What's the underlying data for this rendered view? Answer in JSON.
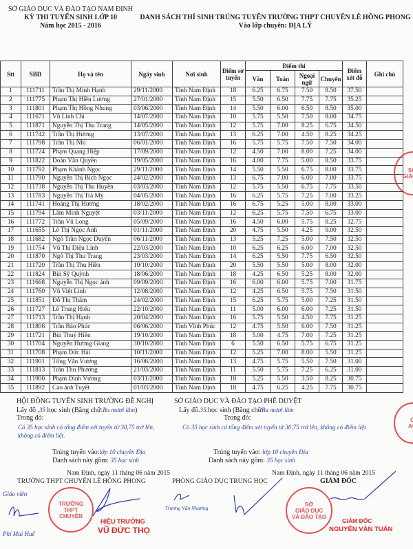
{
  "header_left": {
    "line1": "SỞ GIÁO DỤC VÀ ĐÀO TẠO NAM ĐỊNH",
    "line2": "KỲ THI TUYỂN SINH LỚP 10",
    "line3": "Năm học 2015 - 2016"
  },
  "header_right": {
    "title": "DANH SÁCH THÍ SINH TRÚNG TUYỂN TRƯỜNG THPT CHUYÊN LÊ HỒNG PHONG",
    "subtitle": "Vào lớp chuyên: ĐỊA LÝ"
  },
  "table": {
    "headers": {
      "stt": "Stt",
      "sbd": "SBD",
      "name": "Họ và tên",
      "dob": "Ngày sinh",
      "pob": "Nơi sinh",
      "prelim": "Điểm sơ tuyển",
      "exam_group": "Điểm thi",
      "van": "Văn",
      "toan": "Toán",
      "ngoaingu": "Ngoại ngữ",
      "chuyen": "Chuyên",
      "total": "Điểm xét đỗ",
      "note": "Ghi chú"
    },
    "rows": [
      [
        "1",
        "111711",
        "Trần Thị Minh Hạnh",
        "29/11/2000",
        "Tỉnh Nam Định",
        "18",
        "6.25",
        "6.75",
        "7.50",
        "8.50",
        "37.50"
      ],
      [
        "2",
        "111775",
        "Phạm Thị Hiền Lương",
        "27/01/2000",
        "Tỉnh Nam Định",
        "15",
        "5.50",
        "6.50",
        "7.75",
        "7.75",
        "35.25"
      ],
      [
        "3",
        "111801",
        "Phạm Thị Hồng Nhung",
        "03/06/2000",
        "Tỉnh Nam Định",
        "14",
        "5.50",
        "6.00",
        "6.50",
        "8.50",
        "35.00"
      ],
      [
        "4",
        "111671",
        "Vũ Linh Chi",
        "14/07/2000",
        "Tỉnh Nam Định",
        "10",
        "5.75",
        "5.50",
        "7.50",
        "8.00",
        "34.75"
      ],
      [
        "5",
        "111871",
        "Nguyễn Thị Thu Trang",
        "14/05/2000",
        "Tỉnh Nam Định",
        "12",
        "5.75",
        "7.00",
        "8.25",
        "6.75",
        "34.50"
      ],
      [
        "6",
        "111742",
        "Trần Thị Hương",
        "13/07/2000",
        "Tỉnh Nam Định",
        "13",
        "6.25",
        "7.00",
        "4.50",
        "8.25",
        "34.25"
      ],
      [
        "7",
        "111798",
        "Trần Thị Nhi",
        "06/01/2000",
        "Tỉnh Nam Định",
        "16",
        "5.75",
        "5.75",
        "7.50",
        "7.50",
        "34.00"
      ],
      [
        "8",
        "111724",
        "Phạm Quang Hiệp",
        "17/09/2000",
        "Tỉnh Nam Định",
        "12",
        "4.50",
        "7.00",
        "8.00",
        "7.25",
        "34.00"
      ],
      [
        "9",
        "111822",
        "Đoàn Văn Quyền",
        "19/05/2000",
        "Tỉnh Nam Định",
        "16",
        "4.00",
        "7.75",
        "5.00",
        "8.50",
        "33.75"
      ],
      [
        "10",
        "111792",
        "Phạm Khánh Ngọc",
        "29/11/2000",
        "Tỉnh Nam Định",
        "14",
        "5.50",
        "5.50",
        "6.75",
        "8.00",
        "33.75"
      ],
      [
        "11",
        "111790",
        "Nguyễn Thị Bích Ngọc",
        "24/02/2000",
        "Tỉnh Nam Định",
        "13",
        "6.75",
        "7.00",
        "6.00",
        "7.00",
        "33.75"
      ],
      [
        "12",
        "111738",
        "Nguyễn Thị Thu Huyền",
        "03/03/2000",
        "Tỉnh Nam Định",
        "12",
        "5.75",
        "5.50",
        "6.75",
        "7.75",
        "33.50"
      ],
      [
        "13",
        "111783",
        "Nguyễn Thị Trà My",
        "04/05/2000",
        "Tỉnh Nam Định",
        "16",
        "6.25",
        "5.75",
        "7.25",
        "7.00",
        "33.25"
      ],
      [
        "14",
        "111741",
        "Hoàng Thị Hương",
        "18/02/2000",
        "Tỉnh Nam Định",
        "16",
        "6.75",
        "5.25",
        "5.00",
        "8.00",
        "33.00"
      ],
      [
        "15",
        "111794",
        "Lâm Minh Nguyệt",
        "03/11/2000",
        "Tỉnh Nam Định",
        "12",
        "6.25",
        "5.75",
        "7.50",
        "6.75",
        "33.00"
      ],
      [
        "16",
        "111772",
        "Trần Vũ Long",
        "05/09/2000",
        "Tỉnh Nam Định",
        "16",
        "4.50",
        "6.00",
        "5.75",
        "8.25",
        "32.75"
      ],
      [
        "17",
        "111655",
        "Lê Thị Ngọc Anh",
        "01/11/2000",
        "Tỉnh Nam Định",
        "20",
        "4.75",
        "5.50",
        "4.25",
        "9.00",
        "32.50"
      ],
      [
        "18",
        "111682",
        "Ngô Trần Ngọc Duyên",
        "06/11/2000",
        "Tỉnh Nam Định",
        "13",
        "5.25",
        "7.25",
        "5.00",
        "7.50",
        "32.50"
      ],
      [
        "19",
        "111754",
        "Vũ Thị Diệu Linh",
        "22/03/2000",
        "Tỉnh Nam Định",
        "10",
        "6.25",
        "6.25",
        "6.00",
        "7.00",
        "32.50"
      ],
      [
        "20",
        "111870",
        "Ngô Thị Thu Trang",
        "23/03/2000",
        "Tỉnh Nam Định",
        "14",
        "6.25",
        "5.50",
        "7.75",
        "6.50",
        "32.50"
      ],
      [
        "21",
        "111720",
        "Trần Thị Thu Hiền",
        "10/10/2000",
        "Tỉnh Nam Định",
        "20",
        "5.50",
        "5.50",
        "5.00",
        "8.00",
        "32.00"
      ],
      [
        "22",
        "111824",
        "Bùi Sỹ Quỳnh",
        "18/06/2000",
        "Tỉnh Nam Định",
        "18",
        "4.25",
        "6.50",
        "5.25",
        "8.00",
        "32.00"
      ],
      [
        "23",
        "111668",
        "Nguyễn Thị Ngọc ánh",
        "09/09/2000",
        "Tỉnh Nam Định",
        "16",
        "6.00",
        "6.00",
        "5.75",
        "7.00",
        "31.75"
      ],
      [
        "24",
        "111760",
        "Vũ Việt Linh",
        "12/08/2000",
        "Tỉnh Nam Định",
        "12",
        "4.25",
        "6.50",
        "5.75",
        "7.50",
        "31.50"
      ],
      [
        "25",
        "111851",
        "Đỗ Thị Thắm",
        "24/02/2000",
        "Tỉnh Nam Định",
        "15",
        "6.25",
        "5.75",
        "5.00",
        "7.25",
        "31.50"
      ],
      [
        "26",
        "111727",
        "Lê Trung Hiếu",
        "22/10/2000",
        "Tỉnh Nam Định",
        "11",
        "5.00",
        "6.00",
        "6.00",
        "7.25",
        "31.50"
      ],
      [
        "27",
        "111713",
        "Trần Thị Hạnh",
        "20/04/2000",
        "Tỉnh Nam Định",
        "16",
        "5.75",
        "5.50",
        "4.50",
        "7.75",
        "31.25"
      ],
      [
        "28",
        "111806",
        "Trần Bảo Phúc",
        "06/06/2000",
        "Tỉnh Vĩnh Phúc",
        "12",
        "4.75",
        "5.50",
        "6.00",
        "7.50",
        "31.25"
      ],
      [
        "29",
        "111721",
        "Bùi Thuý Hiền",
        "19/10/2000",
        "Tỉnh Nam Định",
        "18",
        "5.00",
        "4.75",
        "7.00",
        "7.25",
        "31.25"
      ],
      [
        "30",
        "111704",
        "Nguyễn Hương Giang",
        "30/10/2000",
        "Tỉnh Nam Định",
        "6",
        "5.50",
        "6.50",
        "5.75",
        "6.75",
        "31.25"
      ],
      [
        "31",
        "111708",
        "Phạm Đức Hải",
        "10/11/2000",
        "Tỉnh Nam Định",
        "12",
        "5.25",
        "7.00",
        "8.00",
        "5.50",
        "31.25"
      ],
      [
        "32",
        "111901",
        "Tống Văn Vương",
        "16/06/2000",
        "Tỉnh Nam Định",
        "13",
        "4.75",
        "5.75",
        "5.50",
        "7.50",
        "31.00"
      ],
      [
        "33",
        "111813",
        "Trần Thu Phương",
        "21/03/2000",
        "Tỉnh Nam Định",
        "11",
        "5.50",
        "5.75",
        "7.25",
        "6.25",
        "31.00"
      ],
      [
        "34",
        "111900",
        "Phạm Đình Vương",
        "03/11/2000",
        "Tỉnh Nam Định",
        "18",
        "5.25",
        "5.50",
        "3.50",
        "8.25",
        "30.75"
      ],
      [
        "35",
        "111892",
        "Cao ánh Tuyết",
        "01/03/2000",
        "Tỉnh Nam Định",
        "18",
        "4.75",
        "6.25",
        "4.25",
        "7.75",
        "30.75"
      ]
    ]
  },
  "footer_left": {
    "title": "HỘI ĐỒNG TUYỂN SINH TRƯỜNG ĐỀ NGHỊ",
    "take_prefix": "Lấy đỗ",
    "take_count": "35",
    "take_mid": "học sinh (Bằng chữ:",
    "take_words": "Ba mươi lăm",
    "take_suffix": ")",
    "in_which": "Trong đó:",
    "handwritten_note": "Có 35 học sinh có tổng điểm xét tuyển từ 30,75 trở lên, không có điểm liệt.",
    "admitted_label": "Trúng tuyển vào:",
    "admitted_value": "lớp 10 chuyên Địa",
    "list_label": "Danh sách này gồm:",
    "list_value": "35 học sinh",
    "date": "Nam Định, ngày 11 tháng 06 năm 2015",
    "school": "TRƯỜNG THPT CHUYÊN LÊ HỒNG PHONG",
    "teacher_role": "Giáo viên",
    "teacher_name": "Phí Mai Huế",
    "principal_role": "HIỆU TRƯỞNG",
    "principal_name": "VŨ ĐỨC THỌ",
    "stamp_text": "TRƯỜNG THPT CHUYÊN LÊ HỒNG PHONG"
  },
  "footer_right": {
    "title": "SỞ GIÁO DỤC VÀ ĐÀO TẠO PHÊ DUYỆT",
    "take_prefix": "Lấy đỗ",
    "take_count": "35",
    "take_mid": "học sinh (Bằng chữ",
    "take_words": "Ba mươi lăm",
    "in_which": "Trong đó:",
    "handwritten_note": "Có 35 học sinh có tổng điểm xét tuyển từ 30,75 trở lên, không có điểm liệt",
    "admitted_label": "Trúng tuyển vào:",
    "admitted_value": "lớp 10 chuyên Địa",
    "list_label": "Danh sách này gồm:",
    "list_value": "35 học sinh",
    "date": "Nam Định, ngày 11 tháng 06 năm 2015",
    "dept": "PHÒNG GIÁO DỤC TRUNG HỌC",
    "dept_signer": "Trương Văn Nhường",
    "director_heading": "GIÁM ĐỐC",
    "director_role": "GIÁM ĐỐC",
    "director_name": "NGUYỄN VĂN TUẤN",
    "stamp_text": "SỞ GIÁO DỤC VÀ ĐÀO TẠO"
  },
  "colors": {
    "stamp": "#d8272b",
    "ink": "#2a3fa8"
  }
}
